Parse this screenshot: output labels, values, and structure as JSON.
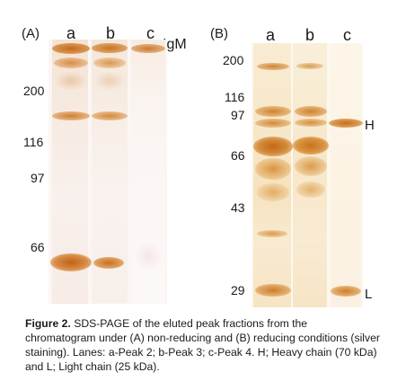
{
  "figure": {
    "panelA": {
      "panel_label": "(A)",
      "lanes": [
        "a",
        "b",
        "c"
      ],
      "markers": [
        "200",
        "116",
        "97",
        "66"
      ],
      "band_label": "IgM"
    },
    "panelB": {
      "panel_label": "(B)",
      "lanes": [
        "a",
        "b",
        "c"
      ],
      "markers": [
        "200",
        "116",
        "97",
        "66",
        "43",
        "29"
      ],
      "band_labels": [
        "H",
        "L"
      ]
    },
    "caption": {
      "label": "Figure 2.",
      "text": "SDS-PAGE of the eluted peak fractions from the chromatogram under (A) non-reducing and (B) reducing conditions (silver staining). Lanes: a-Peak 2; b-Peak 3; c-Peak 4. H; Heavy chain (70 kDa) and L; Light chain (25 kDa)."
    },
    "colors": {
      "band_strong": "#c8741e",
      "band_mid": "#d99648",
      "band_faint": "#e8c79a",
      "gel_bg_A": "#fbf7f5",
      "gel_bg_B": "#fbf6ec"
    }
  }
}
